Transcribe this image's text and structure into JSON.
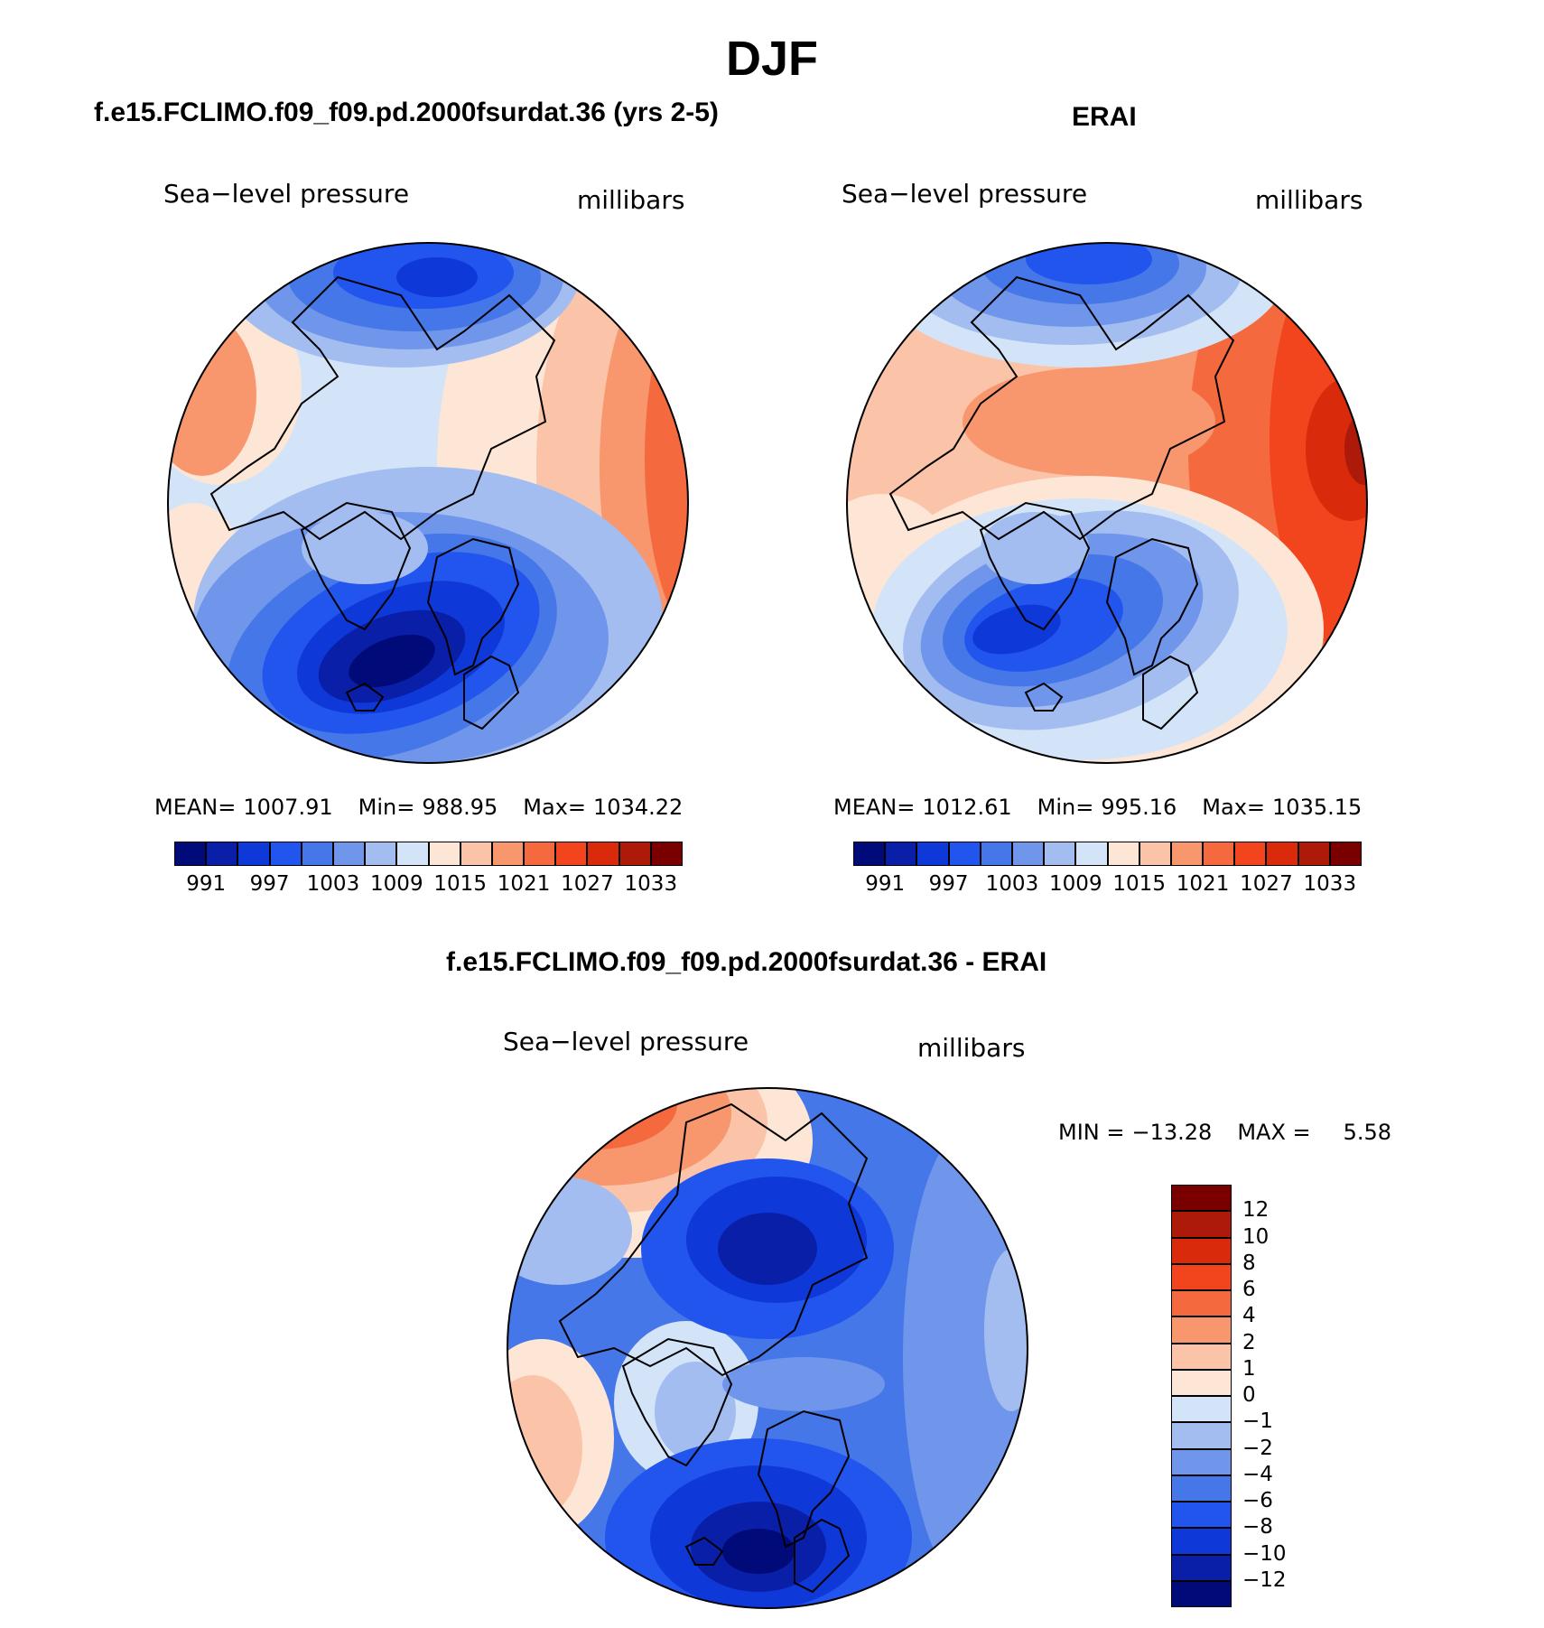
{
  "figure": {
    "season": "DJF"
  },
  "panels": [
    {
      "title": "f.e15.FCLIMO.f09_f09.pd.2000fsurdat.36 (yrs 2-5)",
      "variable": "Sea−level pressure",
      "units": "millibars",
      "stats": {
        "mean_label": "MEAN=",
        "mean": "1007.91",
        "min_label": "Min=",
        "min": "988.95",
        "max_label": "Max=",
        "max": "1034.22"
      }
    },
    {
      "title": "ERAI",
      "variable": "Sea−level pressure",
      "units": "millibars",
      "stats": {
        "mean_label": "MEAN=",
        "mean": "1012.61",
        "min_label": "Min=",
        "min": "995.16",
        "max_label": "Max=",
        "max": "1035.15"
      }
    },
    {
      "title": "f.e15.FCLIMO.f09_f09.pd.2000fsurdat.36 - ERAI",
      "variable": "Sea−level pressure",
      "units": "millibars",
      "stats": {
        "min_label": "MIN =",
        "min": "−13.28",
        "max_label": "MAX =",
        "max": "5.58"
      }
    }
  ],
  "colorbar_abs": {
    "labels": [
      "991",
      "997",
      "1003",
      "1009",
      "1015",
      "1021",
      "1027",
      "1033"
    ],
    "colors": [
      "#000a78",
      "#0a1fa8",
      "#0f38d8",
      "#2155ee",
      "#4677e8",
      "#7096eb",
      "#a3bdf0",
      "#d4e4f8",
      "#fde6d6",
      "#fbc3a8",
      "#f8966d",
      "#f46a3e",
      "#f2441d",
      "#d92b0b",
      "#ad1a0a",
      "#7a0000"
    ]
  },
  "colorbar_diff": {
    "labels": [
      "12",
      "10",
      "8",
      "6",
      "4",
      "2",
      "1",
      "0",
      "−1",
      "−2",
      "−4",
      "−6",
      "−8",
      "−10",
      "−12"
    ],
    "colors": [
      "#7a0000",
      "#ad1a0a",
      "#d92b0b",
      "#f2441d",
      "#f46a3e",
      "#f8966d",
      "#fbc3a8",
      "#fde6d6",
      "#d4e4f8",
      "#a3bdf0",
      "#7096eb",
      "#4677e8",
      "#2155ee",
      "#0f38d8",
      "#0a1fa8",
      "#000a78"
    ]
  },
  "chart_data": [
    {
      "type": "heatmap",
      "title": "f.e15.FCLIMO.f09_f09.pd.2000fsurdat.36 (yrs 2-5)",
      "subtitle": "Sea−level pressure",
      "units": "millibars",
      "projection": "north polar stereographic",
      "levels": [
        988,
        991,
        994,
        997,
        1000,
        1003,
        1006,
        1009,
        1012,
        1015,
        1018,
        1021,
        1024,
        1027,
        1030,
        1033
      ],
      "mean": 1007.91,
      "min": 988.95,
      "max": 1034.22
    },
    {
      "type": "heatmap",
      "title": "ERAI",
      "subtitle": "Sea−level pressure",
      "units": "millibars",
      "projection": "north polar stereographic",
      "levels": [
        988,
        991,
        994,
        997,
        1000,
        1003,
        1006,
        1009,
        1012,
        1015,
        1018,
        1021,
        1024,
        1027,
        1030,
        1033
      ],
      "mean": 1012.61,
      "min": 995.16,
      "max": 1035.15
    },
    {
      "type": "heatmap",
      "title": "f.e15.FCLIMO.f09_f09.pd.2000fsurdat.36 - ERAI",
      "subtitle": "Sea−level pressure",
      "units": "millibars",
      "projection": "north polar stereographic",
      "levels": [
        -12,
        -10,
        -8,
        -6,
        -4,
        -2,
        -1,
        0,
        1,
        2,
        4,
        6,
        8,
        10,
        12
      ],
      "min": -13.28,
      "max": 5.58
    }
  ]
}
